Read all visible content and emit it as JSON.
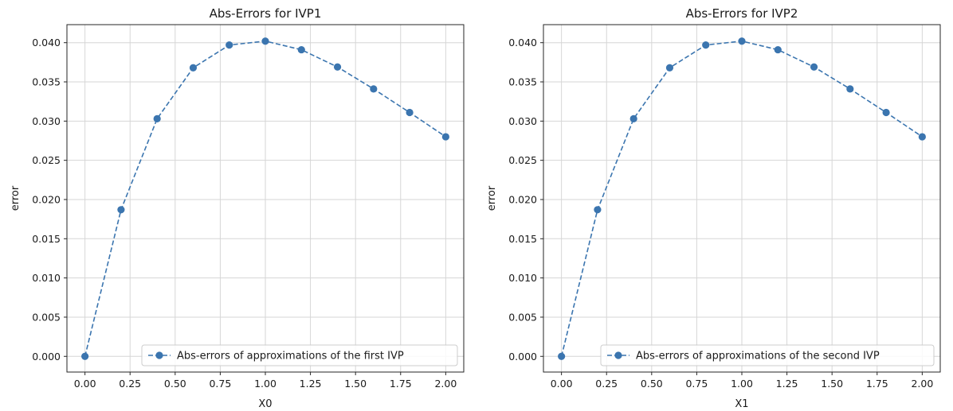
{
  "chart_data": [
    {
      "type": "line",
      "title": "Abs-Errors for IVP1",
      "xlabel": "X0",
      "ylabel": "error",
      "xlim": [
        -0.1,
        2.1
      ],
      "ylim": [
        -0.002,
        0.0423
      ],
      "xticks": [
        0.0,
        0.25,
        0.5,
        0.75,
        1.0,
        1.25,
        1.5,
        1.75,
        2.0
      ],
      "xtick_labels": [
        "0.00",
        "0.25",
        "0.50",
        "0.75",
        "1.00",
        "1.25",
        "1.50",
        "1.75",
        "2.00"
      ],
      "yticks": [
        0.0,
        0.005,
        0.01,
        0.015,
        0.02,
        0.025,
        0.03,
        0.035,
        0.04
      ],
      "ytick_labels": [
        "0.000",
        "0.005",
        "0.010",
        "0.015",
        "0.020",
        "0.025",
        "0.030",
        "0.035",
        "0.040"
      ],
      "grid": true,
      "legend_position": "lower-right",
      "series": [
        {
          "name": "Abs-errors of approximations of the first IVP",
          "color": "#3b75af",
          "linestyle": "dashed",
          "marker": "circle",
          "x": [
            0.0,
            0.2,
            0.4,
            0.6,
            0.8,
            1.0,
            1.2,
            1.4,
            1.6,
            1.8,
            2.0
          ],
          "y": [
            0.0,
            0.0187,
            0.0303,
            0.0368,
            0.0397,
            0.0402,
            0.0391,
            0.0369,
            0.0341,
            0.0311,
            0.028
          ]
        }
      ]
    },
    {
      "type": "line",
      "title": "Abs-Errors for IVP2",
      "xlabel": "X1",
      "ylabel": "error",
      "xlim": [
        -0.1,
        2.1
      ],
      "ylim": [
        -0.002,
        0.0423
      ],
      "xticks": [
        0.0,
        0.25,
        0.5,
        0.75,
        1.0,
        1.25,
        1.5,
        1.75,
        2.0
      ],
      "xtick_labels": [
        "0.00",
        "0.25",
        "0.50",
        "0.75",
        "1.00",
        "1.25",
        "1.50",
        "1.75",
        "2.00"
      ],
      "yticks": [
        0.0,
        0.005,
        0.01,
        0.015,
        0.02,
        0.025,
        0.03,
        0.035,
        0.04
      ],
      "ytick_labels": [
        "0.000",
        "0.005",
        "0.010",
        "0.015",
        "0.020",
        "0.025",
        "0.030",
        "0.035",
        "0.040"
      ],
      "grid": true,
      "legend_position": "lower-right",
      "series": [
        {
          "name": "Abs-errors of approximations of the second IVP",
          "color": "#3b75af",
          "linestyle": "dashed",
          "marker": "circle",
          "x": [
            0.0,
            0.2,
            0.4,
            0.6,
            0.8,
            1.0,
            1.2,
            1.4,
            1.6,
            1.8,
            2.0
          ],
          "y": [
            0.0,
            0.0187,
            0.0303,
            0.0368,
            0.0397,
            0.0402,
            0.0391,
            0.0369,
            0.0341,
            0.0311,
            0.028
          ]
        }
      ]
    }
  ]
}
